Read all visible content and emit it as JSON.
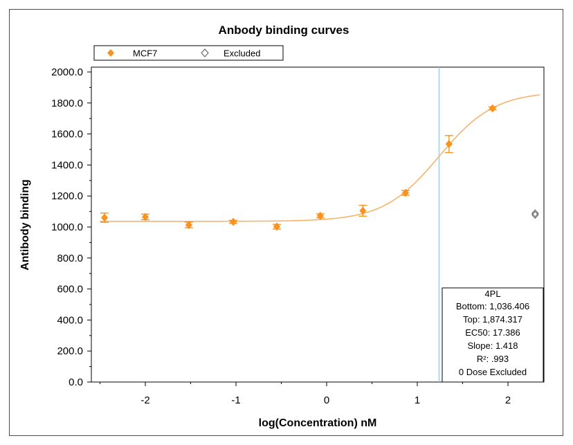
{
  "chart_data": {
    "type": "scatter",
    "title": "Anbody binding curves",
    "xlabel": "log(Concentration) nM",
    "ylabel": "Antibody binding",
    "xlim": [
      -2.5,
      2.4
    ],
    "ylim": [
      0,
      2000
    ],
    "x_ticks": [
      -2,
      -1,
      0,
      1,
      2
    ],
    "y_ticks": [
      0,
      200,
      400,
      600,
      800,
      1000,
      1200,
      1400,
      1600,
      1800,
      2000
    ],
    "y_tick_labels": [
      "0.0",
      "200.0",
      "400.0",
      "600.0",
      "800.0",
      "1000.0",
      "1200.0",
      "1400.0",
      "1600.0",
      "1800.0",
      "2000.0"
    ],
    "x_tick_labels": [
      "-2",
      "-1",
      "0",
      "1",
      "2"
    ],
    "legend": {
      "placement": "top",
      "entries": [
        {
          "label": "MCF7",
          "marker": "filled-diamond",
          "color": "#f7931e"
        },
        {
          "label": "Excluded",
          "marker": "open-diamond",
          "color": "#555555"
        }
      ]
    },
    "series": [
      {
        "name": "MCF7",
        "color": "#f7931e",
        "points": [
          {
            "x": -2.45,
            "y": 1060,
            "err": 30
          },
          {
            "x": -2.0,
            "y": 1065,
            "err": 18
          },
          {
            "x": -1.52,
            "y": 1013,
            "err": 18
          },
          {
            "x": -1.03,
            "y": 1033,
            "err": 10
          },
          {
            "x": -0.55,
            "y": 1002,
            "err": 15
          },
          {
            "x": -0.07,
            "y": 1072,
            "err": 13
          },
          {
            "x": 0.4,
            "y": 1105,
            "err": 35
          },
          {
            "x": 0.87,
            "y": 1220,
            "err": 15
          },
          {
            "x": 1.35,
            "y": 1535,
            "err": 55
          },
          {
            "x": 1.83,
            "y": 1765,
            "err": 10
          }
        ]
      }
    ],
    "excluded_points": [
      {
        "x": 2.3,
        "y": 1088
      },
      {
        "x": 2.3,
        "y": 1078
      }
    ],
    "fit": {
      "model": "4PL",
      "bottom": 1036.406,
      "top": 1874.317,
      "ec50": 17.386,
      "slope": 1.418,
      "curve_color": "#f7b36b"
    },
    "ec50_line": {
      "x": 1.24,
      "color": "#8ec8ea"
    },
    "grid": false,
    "stats_box": {
      "placement": "bottom-right",
      "lines": [
        "4PL",
        "Bottom: 1,036.406",
        "Top: 1,874.317",
        "EC50: 17.386",
        "Slope: 1.418",
        "R²: .993",
        "0 Dose Excluded"
      ]
    }
  }
}
